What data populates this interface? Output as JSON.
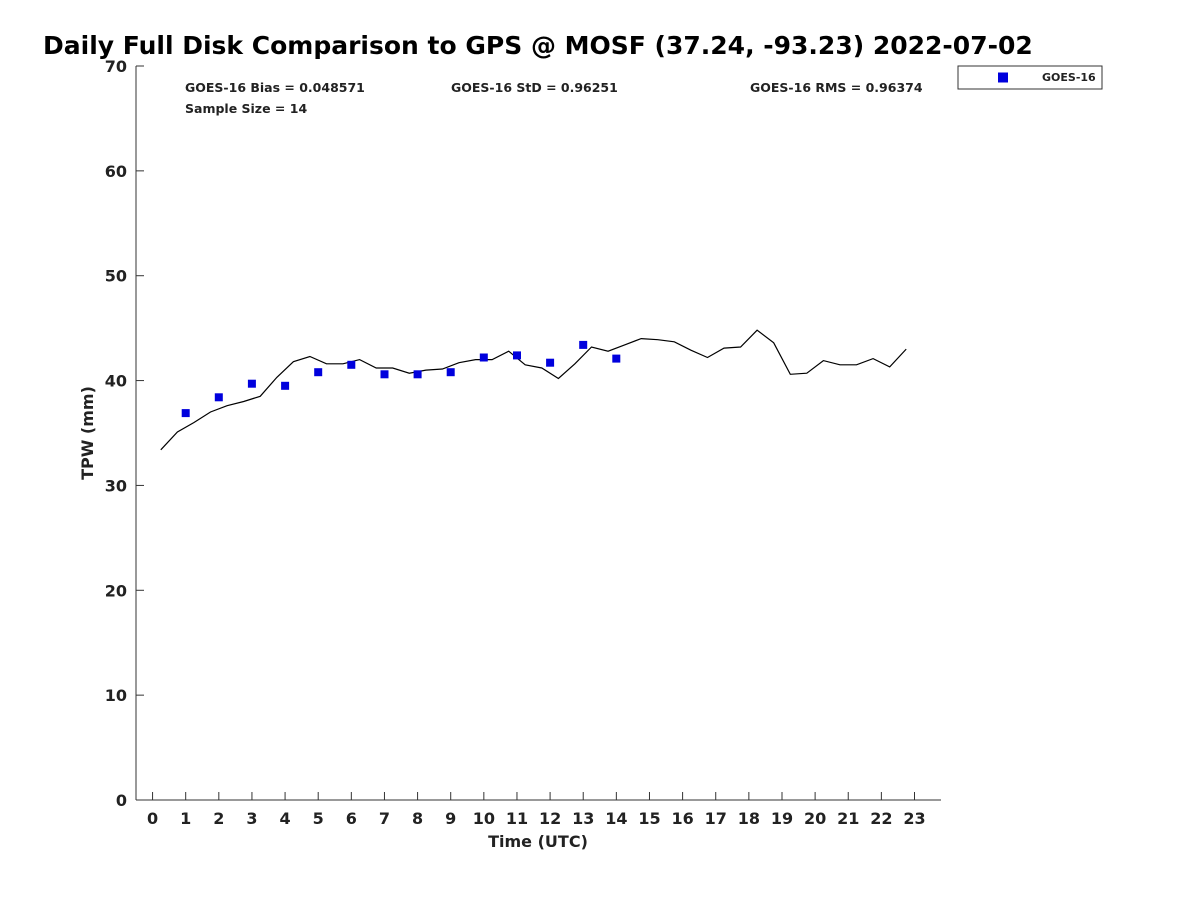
{
  "chart_data": {
    "type": "scatter",
    "title": "Daily Full Disk Comparison to GPS @ MOSF (37.24, -93.23) 2022-07-02",
    "xlabel": "Time (UTC)",
    "ylabel": "TPW (mm)",
    "xlim": [
      -0.5,
      23.8
    ],
    "ylim": [
      0,
      70
    ],
    "x_ticks": [
      0,
      1,
      2,
      3,
      4,
      5,
      6,
      7,
      8,
      9,
      10,
      11,
      12,
      13,
      14,
      15,
      16,
      17,
      18,
      19,
      20,
      21,
      22,
      23
    ],
    "y_ticks": [
      0,
      10,
      20,
      30,
      40,
      50,
      60,
      70
    ],
    "grid": false,
    "legend_position": "top-right",
    "stats": {
      "bias": "GOES-16 Bias = 0.048571",
      "std": "GOES-16 StD = 0.96251",
      "rms": "GOES-16 RMS = 0.96374",
      "sample_size": "Sample Size = 14"
    },
    "series": [
      {
        "name": "GOES-16",
        "type": "scatter",
        "marker": "square",
        "color": "#0000dd",
        "x": [
          1,
          2,
          3,
          4,
          5,
          6,
          7,
          8,
          9,
          10,
          11,
          12,
          13,
          14
        ],
        "y": [
          36.9,
          38.4,
          39.7,
          39.5,
          40.8,
          41.5,
          40.6,
          40.6,
          40.8,
          42.2,
          42.4,
          41.7,
          43.4,
          42.1
        ]
      },
      {
        "name": "GPS",
        "type": "line",
        "color": "#000000",
        "x": [
          0.25,
          0.75,
          1.25,
          1.75,
          2.25,
          2.75,
          3.25,
          3.75,
          4.25,
          4.75,
          5.25,
          5.75,
          6.25,
          6.75,
          7.25,
          7.75,
          8.25,
          8.75,
          9.25,
          9.75,
          10.25,
          10.75,
          11.25,
          11.75,
          12.25,
          12.75,
          13.25,
          13.75,
          14.25,
          14.75,
          15.25,
          15.75,
          16.25,
          16.75,
          17.25,
          17.75,
          18.25,
          18.75,
          19.25,
          19.75,
          20.25,
          20.75,
          21.25,
          21.75,
          22.25,
          22.75
        ],
        "y": [
          33.4,
          35.1,
          36.0,
          37.0,
          37.6,
          38.0,
          38.5,
          40.3,
          41.8,
          42.3,
          41.6,
          41.6,
          42.0,
          41.2,
          41.2,
          40.7,
          41.0,
          41.1,
          41.7,
          42.0,
          42.0,
          42.8,
          41.5,
          41.2,
          40.2,
          41.6,
          43.2,
          42.8,
          43.4,
          44.0,
          43.9,
          43.7,
          42.9,
          42.2,
          43.1,
          43.2,
          44.8,
          43.6,
          40.6,
          40.7,
          41.9,
          41.5,
          41.5,
          42.1,
          41.3,
          43.0
        ]
      }
    ]
  }
}
